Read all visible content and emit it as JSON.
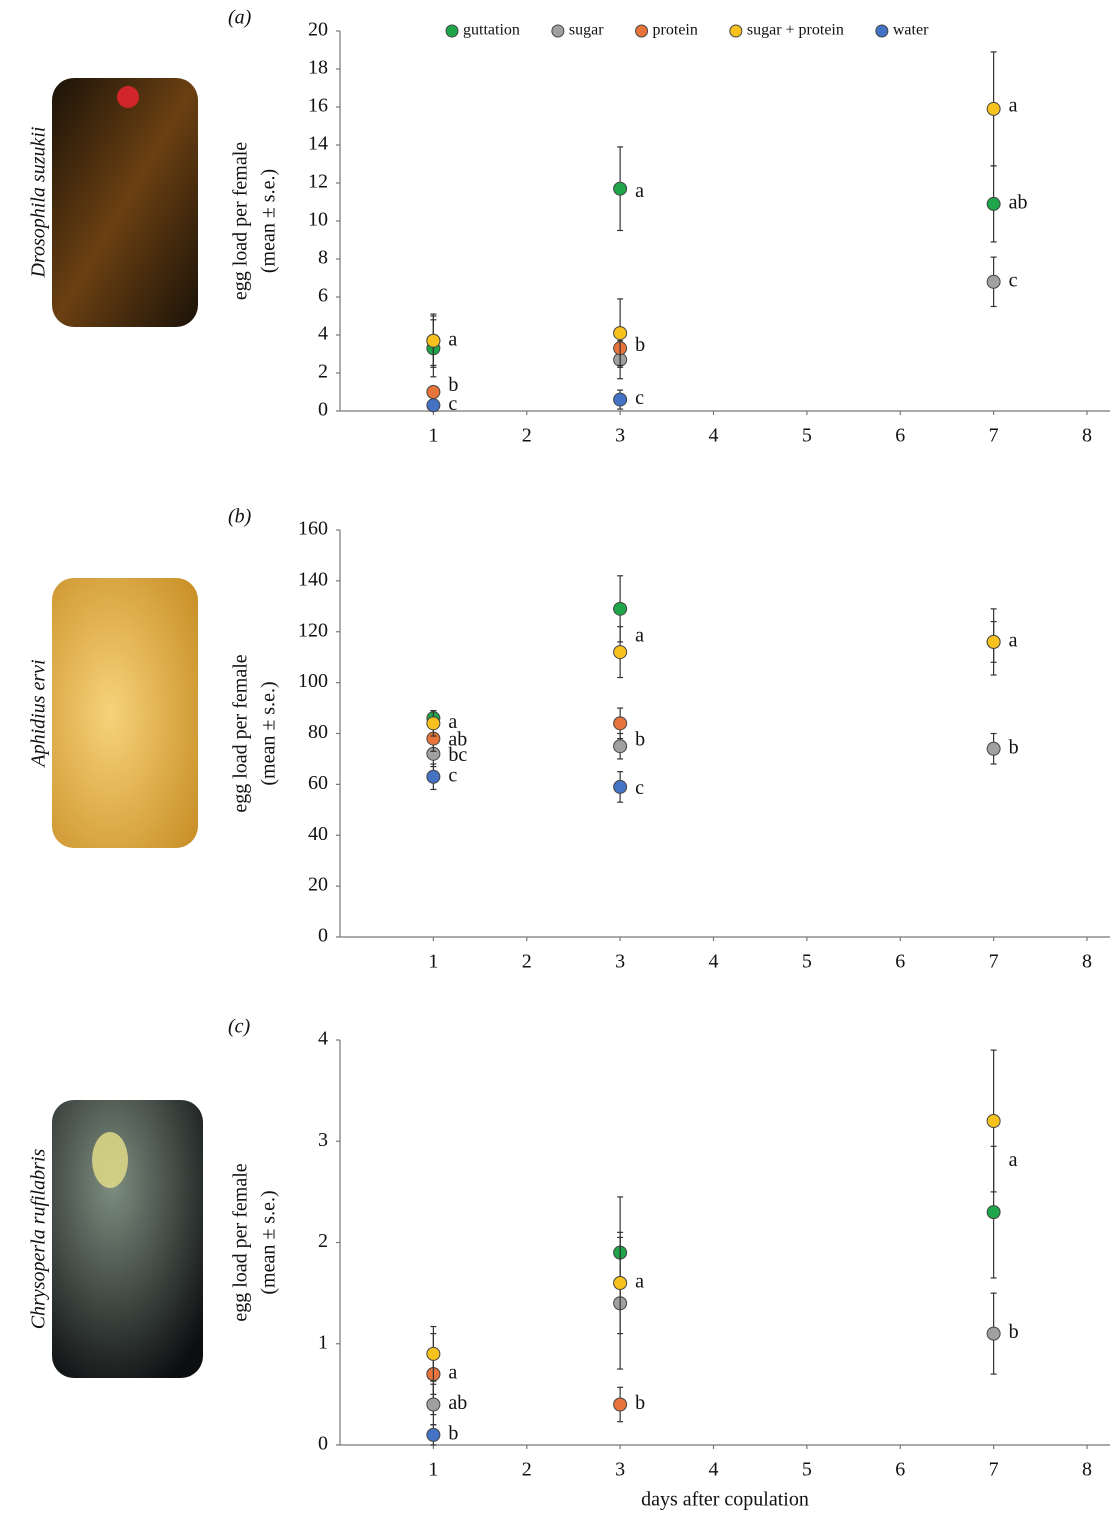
{
  "chart_data": [
    {
      "type": "scatter",
      "panel_label": "(a)",
      "species": "Drosophila suzukii",
      "ylabel": "egg load per female",
      "ylabel_note": "(mean ± s.e.)",
      "x": [
        1,
        3,
        7
      ],
      "xlim": [
        0,
        8
      ],
      "xticks": [
        1,
        2,
        3,
        4,
        5,
        6,
        7,
        8
      ],
      "ylim": [
        0,
        20
      ],
      "yticks": [
        0,
        2,
        4,
        6,
        8,
        10,
        12,
        14,
        16,
        18,
        20
      ],
      "legend": "top",
      "series": [
        {
          "name": "guttation",
          "color": "#1fa64a",
          "values": [
            3.3,
            11.7,
            10.9
          ],
          "errors": [
            1.5,
            2.2,
            2.0
          ]
        },
        {
          "name": "sugar",
          "color": "#a0a0a0",
          "values": [
            3.7,
            2.7,
            6.8
          ],
          "errors": [
            1.3,
            1.0,
            1.3
          ]
        },
        {
          "name": "protein",
          "color": "#e8743b",
          "values": [
            1.0,
            3.3,
            null
          ],
          "errors": [
            0.3,
            0.9,
            null
          ]
        },
        {
          "name": "sugar + protein",
          "color": "#f7c21e",
          "values": [
            3.7,
            4.1,
            15.9
          ],
          "errors": [
            1.4,
            1.8,
            3.0
          ]
        },
        {
          "name": "water",
          "color": "#4472c4",
          "values": [
            0.3,
            0.6,
            null
          ],
          "errors": [
            0.2,
            0.5,
            null
          ]
        }
      ],
      "annotations": [
        {
          "text": "a",
          "x": 1,
          "y": 3.7
        },
        {
          "text": "b",
          "x": 1,
          "y": 1.3
        },
        {
          "text": "c",
          "x": 1,
          "y": 0.3
        },
        {
          "text": "a",
          "x": 3,
          "y": 11.5
        },
        {
          "text": "b",
          "x": 3,
          "y": 3.4
        },
        {
          "text": "c",
          "x": 3,
          "y": 0.6
        },
        {
          "text": "a",
          "x": 7,
          "y": 16
        },
        {
          "text": "ab",
          "x": 7,
          "y": 10.9
        },
        {
          "text": "c",
          "x": 7,
          "y": 6.8
        }
      ]
    },
    {
      "type": "scatter",
      "panel_label": "(b)",
      "species": "Aphidius ervi",
      "ylabel": "egg load per female",
      "ylabel_note": "(mean ± s.e.)",
      "x": [
        1,
        3,
        7
      ],
      "xlim": [
        0,
        8
      ],
      "xticks": [
        1,
        2,
        3,
        4,
        5,
        6,
        7,
        8
      ],
      "ylim": [
        0,
        160
      ],
      "yticks": [
        0,
        20,
        40,
        60,
        80,
        100,
        120,
        140,
        160
      ],
      "series": [
        {
          "name": "guttation",
          "color": "#1fa64a",
          "values": [
            86,
            129,
            116
          ],
          "errors": [
            3,
            13,
            13
          ]
        },
        {
          "name": "sugar",
          "color": "#a0a0a0",
          "values": [
            72,
            75,
            74
          ],
          "errors": [
            5,
            5,
            6
          ]
        },
        {
          "name": "protein",
          "color": "#e8743b",
          "values": [
            78,
            84,
            null
          ],
          "errors": [
            5,
            6,
            null
          ]
        },
        {
          "name": "sugar + protein",
          "color": "#f7c21e",
          "values": [
            84,
            112,
            116
          ],
          "errors": [
            5,
            10,
            8
          ]
        },
        {
          "name": "water",
          "color": "#4472c4",
          "values": [
            63,
            59,
            null
          ],
          "errors": [
            5,
            6,
            null
          ]
        }
      ],
      "annotations": [
        {
          "text": "a",
          "x": 1,
          "y": 84
        },
        {
          "text": "ab",
          "x": 1,
          "y": 77
        },
        {
          "text": "bc",
          "x": 1,
          "y": 71
        },
        {
          "text": "c",
          "x": 1,
          "y": 63
        },
        {
          "text": "a",
          "x": 3,
          "y": 118
        },
        {
          "text": "b",
          "x": 3,
          "y": 77
        },
        {
          "text": "c",
          "x": 3,
          "y": 58
        },
        {
          "text": "a",
          "x": 7,
          "y": 116
        },
        {
          "text": "b",
          "x": 7,
          "y": 74
        }
      ]
    },
    {
      "type": "scatter",
      "panel_label": "(c)",
      "species": "Chrysoperla rufilabris",
      "ylabel": "egg load per female",
      "ylabel_note": "(mean ± s.e.)",
      "xlabel": "days after copulation",
      "x": [
        1,
        3,
        7
      ],
      "xlim": [
        0,
        8
      ],
      "xticks": [
        1,
        2,
        3,
        4,
        5,
        6,
        7,
        8
      ],
      "ylim": [
        0,
        4
      ],
      "yticks": [
        0,
        1,
        2,
        3,
        4
      ],
      "series": [
        {
          "name": "guttation",
          "color": "#1fa64a",
          "values": [
            0.7,
            1.9,
            2.3
          ],
          "errors": [
            0.4,
            0.55,
            0.65
          ]
        },
        {
          "name": "sugar",
          "color": "#a0a0a0",
          "values": [
            0.4,
            1.4,
            1.1
          ],
          "errors": [
            0.2,
            0.65,
            0.4
          ]
        },
        {
          "name": "protein",
          "color": "#e8743b",
          "values": [
            0.7,
            0.4,
            null
          ],
          "errors": [
            0.2,
            0.17,
            null
          ]
        },
        {
          "name": "sugar + protein",
          "color": "#f7c21e",
          "values": [
            0.9,
            1.6,
            3.2
          ],
          "errors": [
            0.27,
            0.5,
            0.7
          ]
        },
        {
          "name": "water",
          "color": "#4472c4",
          "values": [
            0.1,
            null,
            null
          ],
          "errors": [
            0.1,
            null,
            null
          ]
        }
      ],
      "annotations": [
        {
          "text": "a",
          "x": 1,
          "y": 0.7
        },
        {
          "text": "ab",
          "x": 1,
          "y": 0.4
        },
        {
          "text": "b",
          "x": 1,
          "y": 0.1
        },
        {
          "text": "a",
          "x": 3,
          "y": 1.6
        },
        {
          "text": "b",
          "x": 3,
          "y": 0.4
        },
        {
          "text": "a",
          "x": 7,
          "y": 2.8
        },
        {
          "text": "b",
          "x": 7,
          "y": 1.1
        }
      ]
    }
  ]
}
